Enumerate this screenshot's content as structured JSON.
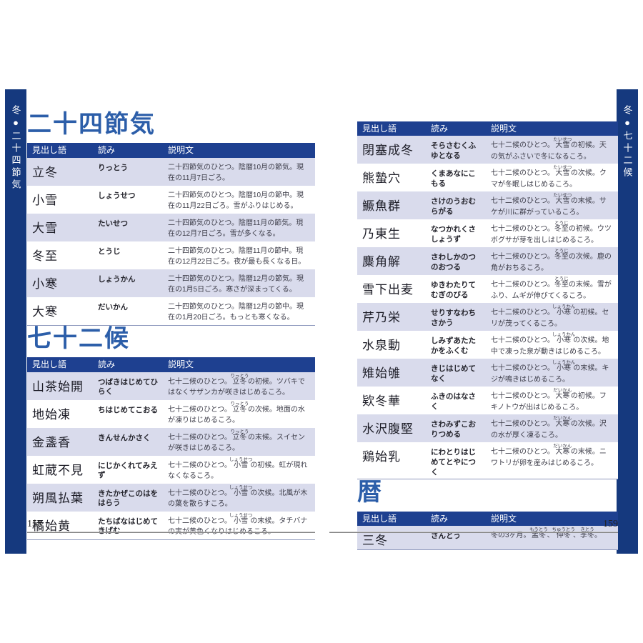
{
  "tabs": {
    "left": "冬●二十四節気",
    "right": "冬●七十二候"
  },
  "colors": {
    "navy_tab": "#15397e",
    "navy_header": "#1e4090",
    "stripe": "#d9dbec",
    "title_blue": "#2c5ea9",
    "rule_gray": "#828282"
  },
  "left_page": {
    "page_number": "158",
    "sections": [
      {
        "title": "二十四節気",
        "headers": [
          "見出し語",
          "読み",
          "説明文"
        ],
        "rows": [
          {
            "headword": "立冬",
            "reading": "りっとう",
            "desc": [
              {
                "t": "二十四節気のひとつ。陰暦10月の節気。現在の11月7日ごろ。"
              }
            ]
          },
          {
            "headword": "小雪",
            "reading": "しょうせつ",
            "desc": [
              {
                "t": "二十四節気のひとつ。陰暦10月の節中。現在の11月22日ごろ。雪がふりはじめる。"
              }
            ]
          },
          {
            "headword": "大雪",
            "reading": "たいせつ",
            "desc": [
              {
                "t": "二十四節気のひとつ。陰暦11月の節気。現在の12月7日ごろ。雪が多くなる。"
              }
            ]
          },
          {
            "headword": "冬至",
            "reading": "とうじ",
            "desc": [
              {
                "t": "二十四節気のひとつ。陰暦11月の節中。現在の12月22日ごろ。夜が最も長くなる日。"
              }
            ]
          },
          {
            "headword": "小寒",
            "reading": "しょうかん",
            "desc": [
              {
                "t": "二十四節気のひとつ。陰暦12月の節気。現在の1月5日ごろ。寒さが深まってくる。"
              }
            ]
          },
          {
            "headword": "大寒",
            "reading": "だいかん",
            "desc": [
              {
                "t": "二十四節気のひとつ。陰暦12月の節中。現在の1月20日ごろ。もっとも寒くなる。"
              }
            ]
          }
        ]
      },
      {
        "title": "七十二候",
        "headers": [
          "見出し語",
          "読み",
          "説明文"
        ],
        "rows": [
          {
            "headword": "山茶始開",
            "reading": "つばきはじめてひらく",
            "desc": [
              {
                "t": "七十二候のひとつ。"
              },
              {
                "t": "立冬",
                "r": "りっとう"
              },
              {
                "t": "の初候。ツバキではなくサザンカが咲きはじめるころ。"
              }
            ]
          },
          {
            "headword": "地始凍",
            "reading": "ちはじめてこおる",
            "desc": [
              {
                "t": "七十二候のひとつ。"
              },
              {
                "t": "立冬",
                "r": "りっとう"
              },
              {
                "t": "の次候。地面の水が凍りはじめるころ。"
              }
            ]
          },
          {
            "headword": "金盞香",
            "reading": "きんせんかさく",
            "desc": [
              {
                "t": "七十二候のひとつ。"
              },
              {
                "t": "立冬",
                "r": "りっとう"
              },
              {
                "t": "の末候。スイセンが咲きはじめるころ。"
              }
            ]
          },
          {
            "headword": "虹蔵不見",
            "reading": "にじかくれてみえず",
            "desc": [
              {
                "t": "七十二候のひとつ。"
              },
              {
                "t": "小雪",
                "r": "しょうせつ"
              },
              {
                "t": "の初候。虹が現れなくなるころ。"
              }
            ]
          },
          {
            "headword": "朔風払葉",
            "reading": "きたかぜこのはをはらう",
            "desc": [
              {
                "t": "七十二候のひとつ。"
              },
              {
                "t": "小雪",
                "r": "しょうせつ"
              },
              {
                "t": "の次候。北風が木の葉を散らすころ。"
              }
            ]
          },
          {
            "headword": "橘始黄",
            "reading": "たちばなはじめてきばむ",
            "desc": [
              {
                "t": "七十二候のひとつ。"
              },
              {
                "t": "小雪",
                "r": "しょうせつ"
              },
              {
                "t": "の末候。タチバナの実が黄色くなりはじめるころ。"
              }
            ]
          }
        ]
      }
    ]
  },
  "right_page": {
    "page_number": "159",
    "sections": [
      {
        "title": "",
        "headers": [
          "見出し語",
          "読み",
          "説明文"
        ],
        "rows": [
          {
            "headword": "閉塞成冬",
            "reading": "そらさむくふゆとなる",
            "desc": [
              {
                "t": "七十二候のひとつ。"
              },
              {
                "t": "大雪",
                "r": "たいせつ"
              },
              {
                "t": "の初候。天の気がふさいで冬になるころ。"
              }
            ]
          },
          {
            "headword": "熊蟄穴",
            "reading": "くまあなにこもる",
            "desc": [
              {
                "t": "七十二候のひとつ。"
              },
              {
                "t": "大雪",
                "r": "たいせつ"
              },
              {
                "t": "の次候。クマが冬眠しはじめるころ。"
              }
            ]
          },
          {
            "headword": "鱖魚群",
            "reading": "さけのうおむらがる",
            "desc": [
              {
                "t": "七十二候のひとつ。"
              },
              {
                "t": "大雪",
                "r": "たいせつ"
              },
              {
                "t": "の末候。サケが川に群がっているころ。"
              }
            ]
          },
          {
            "headword": "乃東生",
            "reading": "なつかれくさしょうず",
            "desc": [
              {
                "t": "七十二候のひとつ。"
              },
              {
                "t": "冬至",
                "r": "とうじ"
              },
              {
                "t": "の初候。ウツボグサが芽を出しはじめるころ。"
              }
            ]
          },
          {
            "headword": "麋角解",
            "reading": "さわしかのつのおつる",
            "desc": [
              {
                "t": "七十二候のひとつ。"
              },
              {
                "t": "冬至",
                "r": "とうじ"
              },
              {
                "t": "の次候。鹿の角がおちるころ。"
              }
            ]
          },
          {
            "headword": "雪下出麦",
            "reading": "ゆきわたりてむぎのびる",
            "desc": [
              {
                "t": "七十二候のひとつ。"
              },
              {
                "t": "冬至",
                "r": "とうじ"
              },
              {
                "t": "の末候。雪がふり、ムギが伸びてくるころ。"
              }
            ]
          },
          {
            "headword": "芹乃栄",
            "reading": "せりすなわちさかう",
            "desc": [
              {
                "t": "七十二候のひとつ。"
              },
              {
                "t": "小寒",
                "r": "しょうかん"
              },
              {
                "t": "の初候。セリが茂ってくるころ。"
              }
            ]
          },
          {
            "headword": "水泉動",
            "reading": "しみずあたたかをふくむ",
            "desc": [
              {
                "t": "七十二候のひとつ。"
              },
              {
                "t": "小寒",
                "r": "しょうかん"
              },
              {
                "t": "の次候。地中で凍った泉が動きはじめるころ。"
              }
            ]
          },
          {
            "headword": "雉始雊",
            "reading": "きじはじめてなく",
            "desc": [
              {
                "t": "七十二候のひとつ。"
              },
              {
                "t": "小寒",
                "r": "しょうかん"
              },
              {
                "t": "の末候。キジが鳴きはじめるころ。"
              }
            ]
          },
          {
            "headword": "欵冬華",
            "reading": "ふきのはなさく",
            "desc": [
              {
                "t": "七十二候のひとつ。"
              },
              {
                "t": "大寒",
                "r": "だいかん"
              },
              {
                "t": "の初候。フキノトウが出はじめるころ。"
              }
            ]
          },
          {
            "headword": "水沢腹堅",
            "reading": "さわみずこおりつめる",
            "desc": [
              {
                "t": "七十二候のひとつ。"
              },
              {
                "t": "大寒",
                "r": "だいかん"
              },
              {
                "t": "の次候。沢の水が厚く凍るころ。"
              }
            ]
          },
          {
            "headword": "鶏始乳",
            "reading": "にわとりはじめてとやにつく",
            "desc": [
              {
                "t": "七十二候のひとつ。"
              },
              {
                "t": "大寒",
                "r": "だいかん"
              },
              {
                "t": "の末候。ニワトリが卵を産みはじめるころ。"
              }
            ]
          }
        ]
      },
      {
        "title": "暦",
        "headers": [
          "見出し語",
          "読み",
          "説明文"
        ],
        "rows": [
          {
            "headword": "三冬",
            "reading": "さんとう",
            "desc": [
              {
                "t": "冬の3ヶ月。"
              },
              {
                "t": "孟冬",
                "r": "もうとう"
              },
              {
                "t": "、"
              },
              {
                "t": "仲冬",
                "r": "ちゅうとう"
              },
              {
                "t": "、"
              },
              {
                "t": "季冬",
                "r": "きとう"
              },
              {
                "t": "。"
              }
            ]
          }
        ]
      }
    ]
  }
}
